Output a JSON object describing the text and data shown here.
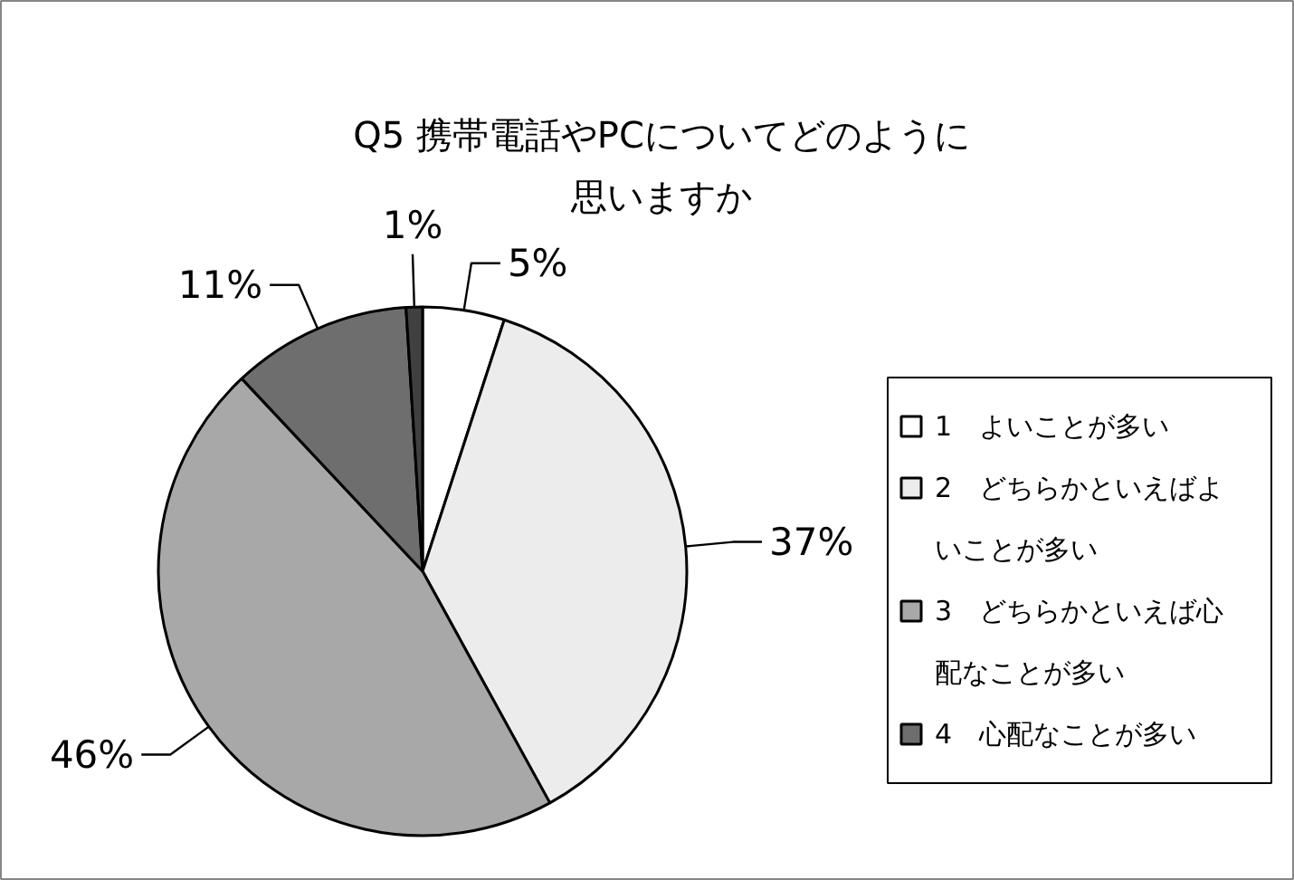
{
  "chart_data": {
    "type": "pie",
    "title": "Q5 携帯電話やPCについてどのように思いますか",
    "categories": [
      "1　よいことが多い",
      "2　どちらかといえばよいことが多い",
      "3　どちらかといえば心配なことが多い",
      "4　心配なことが多い",
      null
    ],
    "values": [
      5,
      37,
      46,
      11,
      1
    ],
    "colors": [
      "#ffffff",
      "#ececec",
      "#a8a8a8",
      "#6e6e6e",
      "#404040"
    ],
    "value_labels": [
      "5%",
      "37%",
      "46%",
      "11%",
      "1%"
    ],
    "legend": "right"
  }
}
